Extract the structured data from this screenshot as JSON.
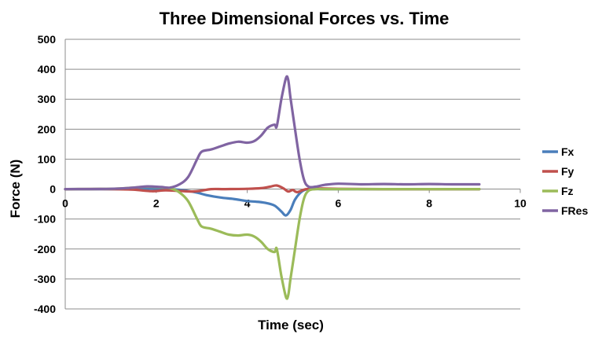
{
  "chart_data": {
    "type": "line",
    "title": "Three Dimensional Forces vs. Time",
    "xlabel": "Time (sec)",
    "ylabel": "Force (N)",
    "xlim": [
      0,
      10
    ],
    "ylim": [
      -400,
      500
    ],
    "xticks": [
      "0",
      "2",
      "4",
      "6",
      "8",
      "10"
    ],
    "yticks": [
      "500",
      "400",
      "300",
      "200",
      "100",
      "0",
      "-100",
      "-200",
      "-300",
      "-400"
    ],
    "grid": true,
    "legend_position": "right",
    "series": [
      {
        "name": "Fx",
        "color": "#4a7ebb",
        "points": [
          [
            0,
            0
          ],
          [
            0.5,
            0
          ],
          [
            1,
            0
          ],
          [
            1.5,
            1
          ],
          [
            2,
            1
          ],
          [
            2.3,
            0
          ],
          [
            2.6,
            -4
          ],
          [
            2.9,
            -12
          ],
          [
            3.1,
            -20
          ],
          [
            3.4,
            -28
          ],
          [
            3.7,
            -33
          ],
          [
            4.0,
            -40
          ],
          [
            4.2,
            -42
          ],
          [
            4.4,
            -46
          ],
          [
            4.6,
            -55
          ],
          [
            4.75,
            -75
          ],
          [
            4.85,
            -88
          ],
          [
            4.95,
            -70
          ],
          [
            5.05,
            -35
          ],
          [
            5.2,
            -8
          ],
          [
            5.35,
            0
          ],
          [
            5.6,
            0
          ],
          [
            6,
            0
          ],
          [
            7,
            0
          ],
          [
            8,
            0
          ],
          [
            9.1,
            0
          ]
        ]
      },
      {
        "name": "Fy",
        "color": "#c0504d",
        "points": [
          [
            0,
            0
          ],
          [
            1,
            0
          ],
          [
            1.5,
            -2
          ],
          [
            1.9,
            -7
          ],
          [
            2.2,
            -4
          ],
          [
            2.5,
            -6
          ],
          [
            2.8,
            -8
          ],
          [
            3.0,
            -5
          ],
          [
            3.2,
            0
          ],
          [
            3.5,
            0
          ],
          [
            4.0,
            1
          ],
          [
            4.3,
            3
          ],
          [
            4.5,
            8
          ],
          [
            4.65,
            12
          ],
          [
            4.8,
            2
          ],
          [
            4.9,
            -8
          ],
          [
            5.0,
            -3
          ],
          [
            5.1,
            -10
          ],
          [
            5.3,
            0
          ],
          [
            5.6,
            2
          ],
          [
            6,
            1
          ],
          [
            7,
            0
          ],
          [
            8,
            0
          ],
          [
            9.1,
            0
          ]
        ]
      },
      {
        "name": "Fz",
        "color": "#9bbb59",
        "points": [
          [
            0,
            0
          ],
          [
            1,
            1
          ],
          [
            1.5,
            5
          ],
          [
            1.8,
            8
          ],
          [
            2.1,
            6
          ],
          [
            2.3,
            3
          ],
          [
            2.5,
            -10
          ],
          [
            2.7,
            -40
          ],
          [
            2.9,
            -100
          ],
          [
            3.0,
            -125
          ],
          [
            3.2,
            -132
          ],
          [
            3.4,
            -142
          ],
          [
            3.6,
            -152
          ],
          [
            3.8,
            -155
          ],
          [
            4.0,
            -152
          ],
          [
            4.15,
            -158
          ],
          [
            4.3,
            -175
          ],
          [
            4.45,
            -200
          ],
          [
            4.6,
            -210
          ],
          [
            4.65,
            -200
          ],
          [
            4.75,
            -290
          ],
          [
            4.85,
            -360
          ],
          [
            4.9,
            -355
          ],
          [
            4.95,
            -300
          ],
          [
            5.05,
            -200
          ],
          [
            5.15,
            -100
          ],
          [
            5.25,
            -30
          ],
          [
            5.35,
            -5
          ],
          [
            5.5,
            0
          ],
          [
            5.7,
            0
          ],
          [
            6,
            0
          ],
          [
            7,
            0
          ],
          [
            8,
            0
          ],
          [
            9.1,
            0
          ]
        ]
      },
      {
        "name": "FRes",
        "color": "#8064a2",
        "points": [
          [
            0,
            0
          ],
          [
            1,
            1
          ],
          [
            1.5,
            5
          ],
          [
            1.8,
            9
          ],
          [
            2.1,
            7
          ],
          [
            2.3,
            5
          ],
          [
            2.5,
            15
          ],
          [
            2.7,
            40
          ],
          [
            2.9,
            100
          ],
          [
            3.0,
            125
          ],
          [
            3.2,
            132
          ],
          [
            3.4,
            142
          ],
          [
            3.6,
            152
          ],
          [
            3.8,
            158
          ],
          [
            4.0,
            155
          ],
          [
            4.15,
            160
          ],
          [
            4.3,
            178
          ],
          [
            4.45,
            205
          ],
          [
            4.6,
            215
          ],
          [
            4.65,
            210
          ],
          [
            4.75,
            300
          ],
          [
            4.85,
            370
          ],
          [
            4.9,
            365
          ],
          [
            4.95,
            305
          ],
          [
            5.05,
            200
          ],
          [
            5.15,
            100
          ],
          [
            5.25,
            30
          ],
          [
            5.35,
            8
          ],
          [
            5.5,
            8
          ],
          [
            5.7,
            14
          ],
          [
            6,
            18
          ],
          [
            6.5,
            16
          ],
          [
            7,
            17
          ],
          [
            7.5,
            16
          ],
          [
            8,
            17
          ],
          [
            8.5,
            16
          ],
          [
            9.1,
            16
          ]
        ]
      }
    ]
  }
}
